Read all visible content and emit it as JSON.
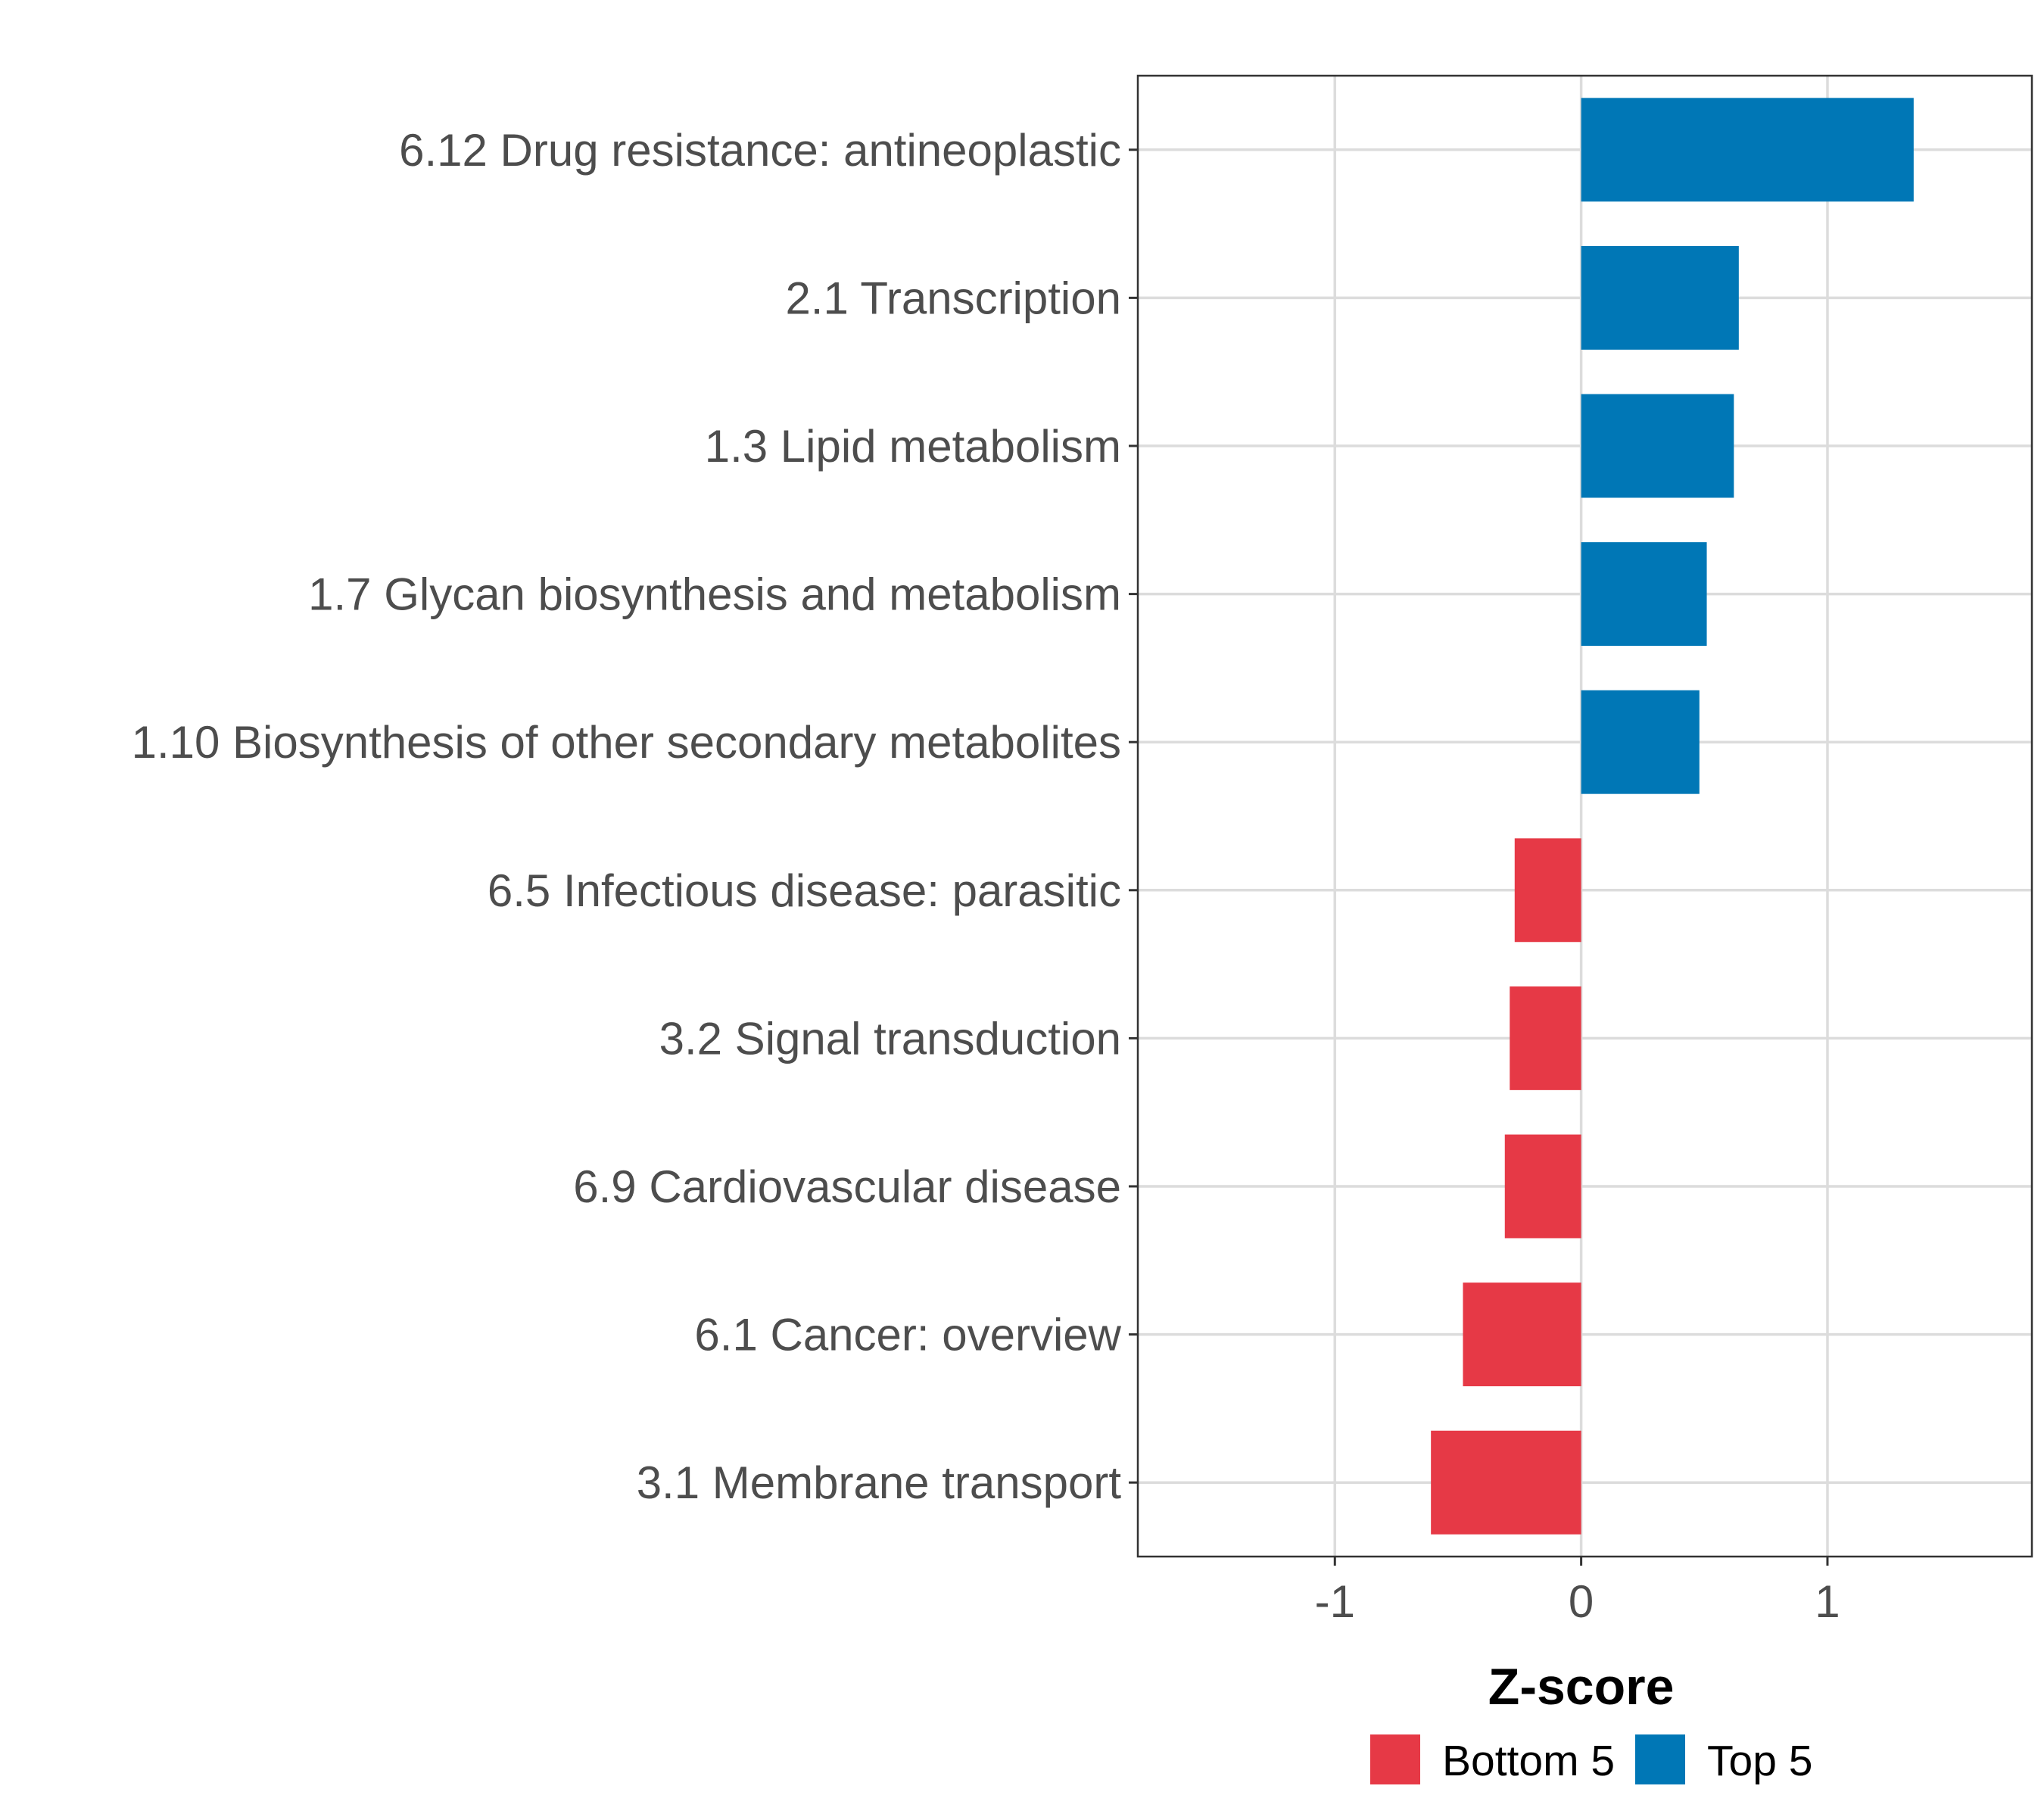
{
  "chart_data": {
    "type": "bar",
    "orientation": "horizontal",
    "title": "",
    "xlabel": "Z-score",
    "ylabel": "",
    "xlim": [
      -1.8,
      1.83
    ],
    "xticks": [
      -1,
      0,
      1
    ],
    "xtick_labels": [
      "-1",
      "0",
      "1"
    ],
    "grid": true,
    "legend_position": "bottom",
    "categories": [
      "6.12 Drug resistance: antineoplastic",
      "2.1 Transcription",
      "1.3 Lipid metabolism",
      "1.7 Glycan biosynthesis and metabolism",
      "1.10 Biosynthesis of other secondary metabolites",
      "6.5 Infectious disease: parasitic",
      "3.2 Signal transduction",
      "6.9 Cardiovascular disease",
      "6.1 Cancer: overview",
      "3.1 Membrane transport"
    ],
    "values": [
      1.35,
      0.64,
      0.62,
      0.51,
      0.48,
      -0.27,
      -0.29,
      -0.31,
      -0.48,
      -0.61
    ],
    "groups": [
      "Top 5",
      "Top 5",
      "Top 5",
      "Top 5",
      "Top 5",
      "Bottom 5",
      "Bottom 5",
      "Bottom 5",
      "Bottom 5",
      "Bottom 5"
    ],
    "legend": [
      {
        "name": "Bottom 5",
        "color": "#e63946"
      },
      {
        "name": "Top 5",
        "color": "#0077b6"
      }
    ]
  }
}
